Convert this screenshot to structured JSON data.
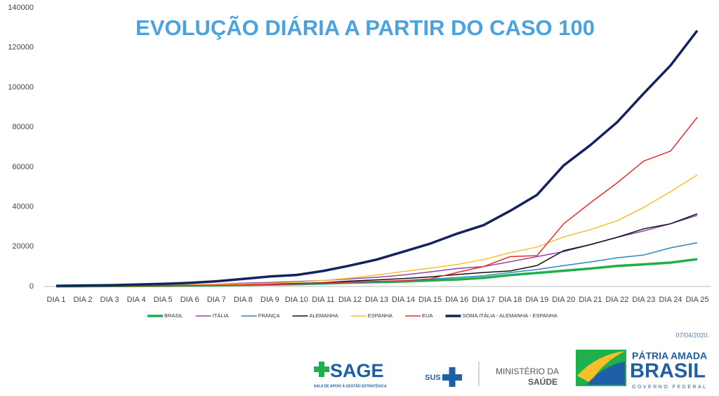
{
  "chart_data": {
    "type": "line",
    "title": "EVOLUÇÃO DIÁRIA A PARTIR DO CASO 100",
    "categories": [
      "DIA 1",
      "DIA 2",
      "DIA 3",
      "DIA 4",
      "DIA 5",
      "DIA 6",
      "DIA 7",
      "DIA 8",
      "DIA 9",
      "DIA 10",
      "DIA 11",
      "DIA 12",
      "DIA 13",
      "DIA 14",
      "DIA 15",
      "DIA 16",
      "DIA 17",
      "DIA 18",
      "DIA 19",
      "DIA 20",
      "DIA 21",
      "DIA 22",
      "DIA 23",
      "DIA 24",
      "DIA 25"
    ],
    "series": [
      {
        "name": "BRASIL",
        "color": "#1fb04b",
        "values": [
          100,
          150,
          200,
          250,
          350,
          450,
          600,
          800,
          1000,
          1200,
          1500,
          1900,
          2200,
          2500,
          3000,
          3500,
          4300,
          5700,
          6800,
          7900,
          9000,
          10300,
          11100,
          12000,
          13700
        ]
      },
      {
        "name": "ITÁLIA",
        "color": "#8e44ad",
        "values": [
          100,
          200,
          300,
          400,
          600,
          800,
          1100,
          1700,
          2000,
          2500,
          3000,
          3800,
          4600,
          5800,
          7300,
          9000,
          10000,
          12400,
          15000,
          17500,
          21000,
          24700,
          27900,
          31500,
          35700
        ]
      },
      {
        "name": "FRANÇA",
        "color": "#2e86c1",
        "values": [
          100,
          150,
          200,
          300,
          400,
          500,
          600,
          700,
          900,
          1100,
          1400,
          1800,
          2300,
          2800,
          3600,
          4500,
          5400,
          7000,
          8500,
          10500,
          12300,
          14400,
          15800,
          19400,
          22000
        ]
      },
      {
        "name": "ALEMANHA",
        "color": "#111111",
        "values": [
          100,
          150,
          200,
          250,
          400,
          500,
          700,
          900,
          1200,
          1500,
          1900,
          2700,
          3300,
          4000,
          4800,
          6000,
          7000,
          7800,
          10500,
          18000,
          21000,
          24700,
          29000,
          31500,
          36500
        ]
      },
      {
        "name": "ESPANHA",
        "color": "#f5c02a",
        "values": [
          100,
          150,
          200,
          300,
          500,
          700,
          1000,
          1300,
          1600,
          2200,
          3000,
          4200,
          5800,
          7500,
          9200,
          11000,
          13500,
          17000,
          19800,
          24900,
          28500,
          33000,
          39700,
          47600,
          56000
        ]
      },
      {
        "name": "EUA",
        "color": "#ee2a2a",
        "values": [
          100,
          150,
          200,
          300,
          400,
          500,
          600,
          800,
          1000,
          1300,
          1700,
          2200,
          2500,
          3000,
          3800,
          7000,
          10000,
          15000,
          15500,
          31500,
          42000,
          52000,
          63000,
          68000,
          85000
        ]
      },
      {
        "name": "SOMA ITÁLIA - ALEMANHA - ESPANHA",
        "color": "#14235e",
        "values": [
          300,
          500,
          600,
          1000,
          1300,
          1800,
          2600,
          3800,
          5000,
          5800,
          7800,
          10500,
          13500,
          17500,
          21500,
          26500,
          30800,
          38000,
          46000,
          60800,
          71000,
          82500,
          97000,
          111000,
          128500
        ]
      }
    ],
    "ylim": [
      0,
      140000
    ],
    "yticks": [
      0,
      20000,
      40000,
      60000,
      80000,
      100000,
      120000,
      140000
    ],
    "grid": false,
    "date": "07/04/2020."
  },
  "footer": {
    "sage": "SAGE",
    "sage_sub": "SALA DE APOIO À GESTÃO ESTRATÉGICA",
    "sus": "SUS",
    "ministerio": "MINISTÉRIO DA",
    "saude": "SAÚDE",
    "patria": "PÁTRIA AMADA",
    "brasil": "BRASIL",
    "governo": "GOVERNO FEDERAL"
  }
}
